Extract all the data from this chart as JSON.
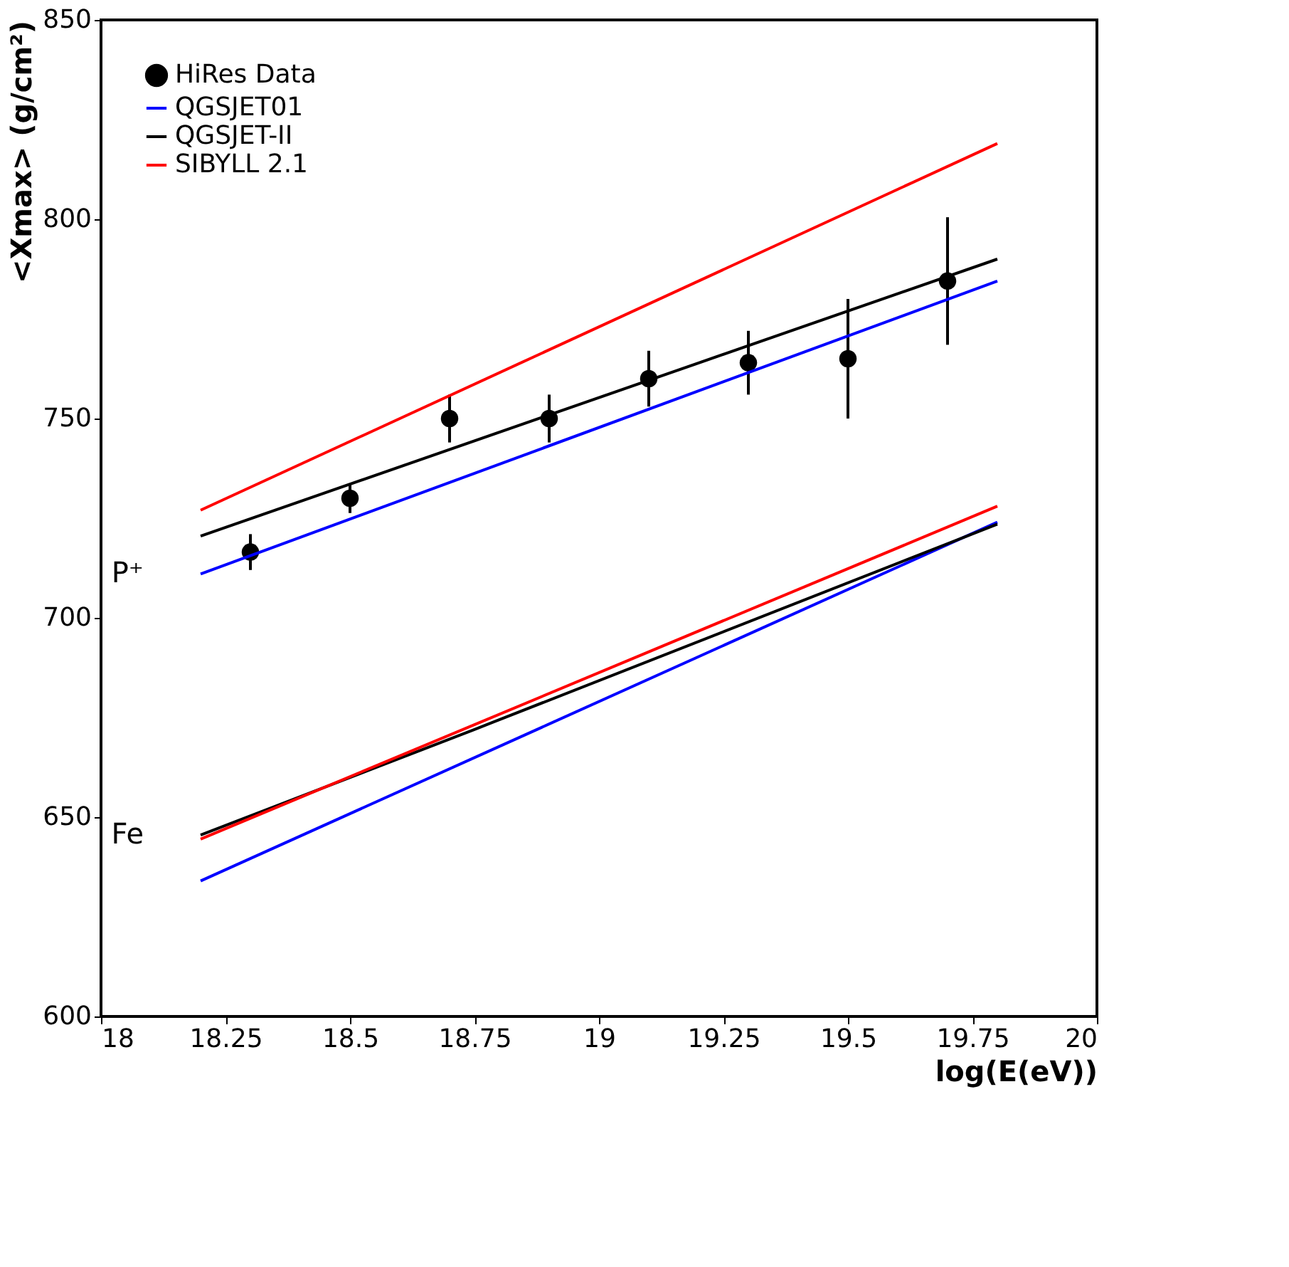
{
  "chart_data": {
    "type": "line",
    "xlabel": "log(E(eV))",
    "ylabel": "<Xmax> (g/cm²)",
    "xlim": [
      18,
      20
    ],
    "xticks": [
      18,
      18.25,
      18.5,
      18.75,
      19,
      19.25,
      19.5,
      19.75,
      20
    ],
    "ylim": [
      600,
      850
    ],
    "yticks": [
      600,
      650,
      700,
      750,
      800,
      850
    ],
    "grid": false,
    "legend": "top left",
    "series": [
      {
        "name": "HiRes Data",
        "type": "scatter",
        "marker": "circle",
        "color": "#000000",
        "x": [
          18.3,
          18.5,
          18.7,
          18.9,
          19.1,
          19.3,
          19.5,
          19.7
        ],
        "values": [
          716.5,
          730,
          750,
          750,
          760,
          764,
          765,
          784.5
        ],
        "errors": [
          4.5,
          3.7,
          6,
          6,
          7,
          8,
          15,
          16
        ]
      },
      {
        "name": "QGSJET01",
        "color": "#0000ff",
        "x": [
          18.2,
          19.8
        ],
        "values": [
          711,
          784.5
        ]
      },
      {
        "name": "QGSJET-II",
        "color": "#000000",
        "x": [
          18.2,
          19.8
        ],
        "values": [
          720.5,
          790
        ]
      },
      {
        "name": "SIBYLL 2.1",
        "color": "#ff0000",
        "x": [
          18.2,
          19.8
        ],
        "values": [
          727,
          819
        ]
      },
      {
        "color": "#0000ff",
        "x": [
          18.2,
          19.8
        ],
        "values": [
          634,
          724
        ]
      },
      {
        "color": "#000000",
        "x": [
          18.2,
          18.75,
          19.8
        ],
        "values": [
          645.5,
          672,
          723.5
        ]
      },
      {
        "color": "#ff0000",
        "x": [
          18.2,
          19.8
        ],
        "values": [
          644.5,
          728
        ]
      }
    ],
    "annotations": [
      {
        "text": "P⁺",
        "x": 18.2,
        "y": 711
      },
      {
        "text": "Fe",
        "x": 18.2,
        "y": 645.5
      }
    ]
  }
}
